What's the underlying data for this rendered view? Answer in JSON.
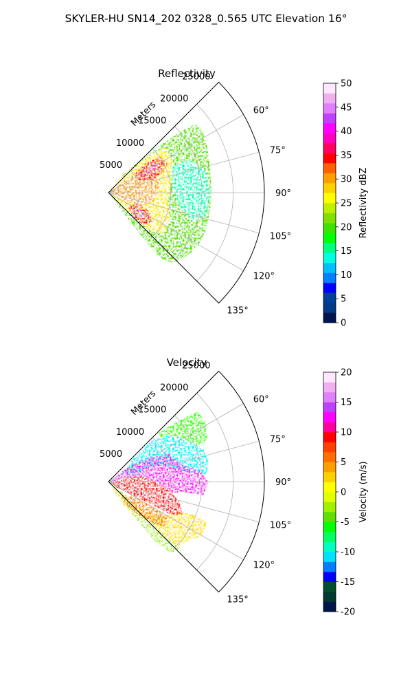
{
  "figure_title": "SKYLER-HU  SN14_202  0328_0.565 UTC Elevation 16°",
  "chart_data": [
    {
      "type": "polar-sector",
      "title": "Reflectivity",
      "range_label": "Meters",
      "range_ticks": [
        "5000",
        "10000",
        "15000",
        "20000",
        "25000"
      ],
      "range_values": [
        5000,
        10000,
        15000,
        20000,
        25000
      ],
      "rmax": 25000,
      "theta_ticks": [
        "60°",
        "75°",
        "90°",
        "105°",
        "120°",
        "135°"
      ],
      "theta_values": [
        60,
        75,
        90,
        105,
        120,
        135
      ],
      "theta_range": [
        45,
        135
      ],
      "colorbar": {
        "label": "Reflectivity dBZ",
        "ticks": [
          "0",
          "5",
          "10",
          "15",
          "20",
          "25",
          "30",
          "35",
          "40",
          "45",
          "50"
        ],
        "range": [
          0,
          50
        ],
        "palette": [
          "#00154d",
          "#003a86",
          "#00409a",
          "#0000ff",
          "#0080ff",
          "#00bfff",
          "#00ffe0",
          "#00ff80",
          "#00ff00",
          "#40e000",
          "#80e000",
          "#c0f000",
          "#ffff00",
          "#ffd000",
          "#ffa000",
          "#ff6000",
          "#ff0000",
          "#ff0060",
          "#ff00c0",
          "#ff00ff",
          "#c040ff",
          "#e080ff",
          "#f0b0f0",
          "#ffe8ff"
        ]
      }
    },
    {
      "type": "polar-sector",
      "title": "Velocity",
      "range_label": "Meters",
      "range_ticks": [
        "5000",
        "10000",
        "15000",
        "20000",
        "25000"
      ],
      "range_values": [
        5000,
        10000,
        15000,
        20000,
        25000
      ],
      "rmax": 25000,
      "theta_ticks": [
        "60°",
        "75°",
        "90°",
        "105°",
        "120°",
        "135°"
      ],
      "theta_values": [
        60,
        75,
        90,
        105,
        120,
        135
      ],
      "theta_range": [
        45,
        135
      ],
      "colorbar": {
        "label": "Velocity (m/s)",
        "ticks": [
          "-20",
          "-15",
          "-10",
          "-5",
          "0",
          "5",
          "10",
          "15",
          "20"
        ],
        "range": [
          -20,
          20
        ],
        "palette": [
          "#00154d",
          "#003a30",
          "#005030",
          "#0000ff",
          "#0080ff",
          "#00e0ff",
          "#00ffc0",
          "#00ff60",
          "#00ff00",
          "#60e000",
          "#a0f000",
          "#e0ff00",
          "#ffff00",
          "#ffd000",
          "#ffa000",
          "#ff7000",
          "#ff4000",
          "#ff0000",
          "#ff00a0",
          "#ff00ff",
          "#c040ff",
          "#e080ff",
          "#f0b0f0",
          "#ffe8ff"
        ]
      }
    }
  ]
}
